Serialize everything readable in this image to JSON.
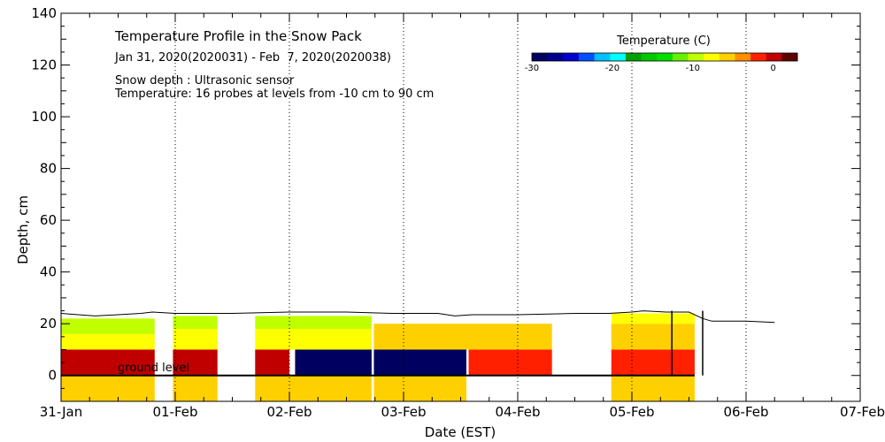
{
  "chart_data": {
    "type": "heatmap",
    "title": "Temperature Profile in the Snow Pack",
    "subtitle": "Jan 31, 2020(2020031) - Feb  7, 2020(2020038)",
    "notes": [
      "Snow depth : Ultrasonic sensor",
      "Temperature: 16 probes at levels from -10 cm to 90 cm"
    ],
    "xlabel": "Date (EST)",
    "ylabel": "Depth, cm",
    "x_range_days": [
      0,
      7
    ],
    "y_range_cm": [
      -10,
      140
    ],
    "x_ticks": [
      "31-Jan",
      "01-Feb",
      "02-Feb",
      "03-Feb",
      "04-Feb",
      "05-Feb",
      "06-Feb",
      "07-Feb"
    ],
    "y_ticks": [
      0,
      20,
      40,
      60,
      80,
      100,
      120,
      140
    ],
    "ground_label": "ground level",
    "colorbar": {
      "title": "Temperature (C)",
      "range": [
        -30,
        3
      ],
      "ticks": [
        -30,
        -20,
        -10,
        0
      ],
      "colors": [
        "#000060",
        "#000090",
        "#0000d0",
        "#0050ff",
        "#00c0ff",
        "#00ffff",
        "#00a000",
        "#00c800",
        "#00e000",
        "#66f000",
        "#c0ff00",
        "#ffff00",
        "#ffd000",
        "#ff9000",
        "#ff2000",
        "#c00000",
        "#600000"
      ]
    },
    "snow_depth_cm": [
      [
        0.0,
        24
      ],
      [
        0.15,
        23.5
      ],
      [
        0.3,
        23
      ],
      [
        0.5,
        23.5
      ],
      [
        0.7,
        24
      ],
      [
        0.8,
        24.5
      ],
      [
        1.0,
        24
      ],
      [
        1.5,
        24
      ],
      [
        2.0,
        24.5
      ],
      [
        2.5,
        24.5
      ],
      [
        2.9,
        24
      ],
      [
        3.3,
        24
      ],
      [
        3.45,
        23
      ],
      [
        3.6,
        23.5
      ],
      [
        4.0,
        23.5
      ],
      [
        4.5,
        24
      ],
      [
        4.8,
        24
      ],
      [
        5.0,
        24.5
      ],
      [
        5.1,
        25
      ],
      [
        5.3,
        24.5
      ],
      [
        5.5,
        24.5
      ],
      [
        5.62,
        22
      ],
      [
        5.7,
        21
      ],
      [
        6.0,
        21
      ],
      [
        6.25,
        20.5
      ]
    ],
    "probe_spike_days": [
      5.35,
      5.62
    ],
    "data_gaps_days": [
      [
        0.82,
        0.98
      ],
      [
        1.37,
        1.7
      ],
      [
        2.72,
        2.74
      ],
      [
        3.55,
        3.57
      ],
      [
        4.3,
        4.82
      ],
      [
        5.55,
        7.0
      ]
    ],
    "temperature_blocks": [
      {
        "x": [
          0.0,
          0.82
        ],
        "y": [
          -10,
          0
        ],
        "temp": -6,
        "note": "soil"
      },
      {
        "x": [
          0.0,
          0.82
        ],
        "y": [
          0,
          10
        ],
        "temp": 0.5
      },
      {
        "x": [
          0.0,
          0.82
        ],
        "y": [
          10,
          16
        ],
        "temp": -7
      },
      {
        "x": [
          0.0,
          0.82
        ],
        "y": [
          16,
          22
        ],
        "temp": -9
      },
      {
        "x": [
          0.98,
          1.37
        ],
        "y": [
          -10,
          0
        ],
        "temp": -6
      },
      {
        "x": [
          0.98,
          1.37
        ],
        "y": [
          0,
          10
        ],
        "temp": 0.5
      },
      {
        "x": [
          0.98,
          1.37
        ],
        "y": [
          10,
          18
        ],
        "temp": -7
      },
      {
        "x": [
          0.98,
          1.37
        ],
        "y": [
          18,
          23
        ],
        "temp": -9
      },
      {
        "x": [
          1.7,
          2.72
        ],
        "y": [
          -10,
          0
        ],
        "temp": -6
      },
      {
        "x": [
          1.7,
          2.0
        ],
        "y": [
          0,
          10
        ],
        "temp": 0.5
      },
      {
        "x": [
          2.05,
          2.72
        ],
        "y": [
          0,
          10
        ],
        "temp": -30
      },
      {
        "x": [
          1.7,
          2.72
        ],
        "y": [
          10,
          18
        ],
        "temp": -7
      },
      {
        "x": [
          1.7,
          2.72
        ],
        "y": [
          18,
          23
        ],
        "temp": -9
      },
      {
        "x": [
          2.74,
          3.55
        ],
        "y": [
          -10,
          0
        ],
        "temp": -6
      },
      {
        "x": [
          2.74,
          3.55
        ],
        "y": [
          0,
          10
        ],
        "temp": -30
      },
      {
        "x": [
          3.57,
          4.3
        ],
        "y": [
          0,
          10
        ],
        "temp": -2
      },
      {
        "x": [
          2.74,
          4.3
        ],
        "y": [
          10,
          20
        ],
        "temp": -5
      },
      {
        "x": [
          4.82,
          5.55
        ],
        "y": [
          -10,
          0
        ],
        "temp": -6
      },
      {
        "x": [
          4.82,
          5.55
        ],
        "y": [
          0,
          10
        ],
        "temp": -2
      },
      {
        "x": [
          4.82,
          5.55
        ],
        "y": [
          10,
          20
        ],
        "temp": -5
      },
      {
        "x": [
          4.82,
          5.55
        ],
        "y": [
          20,
          24
        ],
        "temp": -8
      }
    ]
  }
}
